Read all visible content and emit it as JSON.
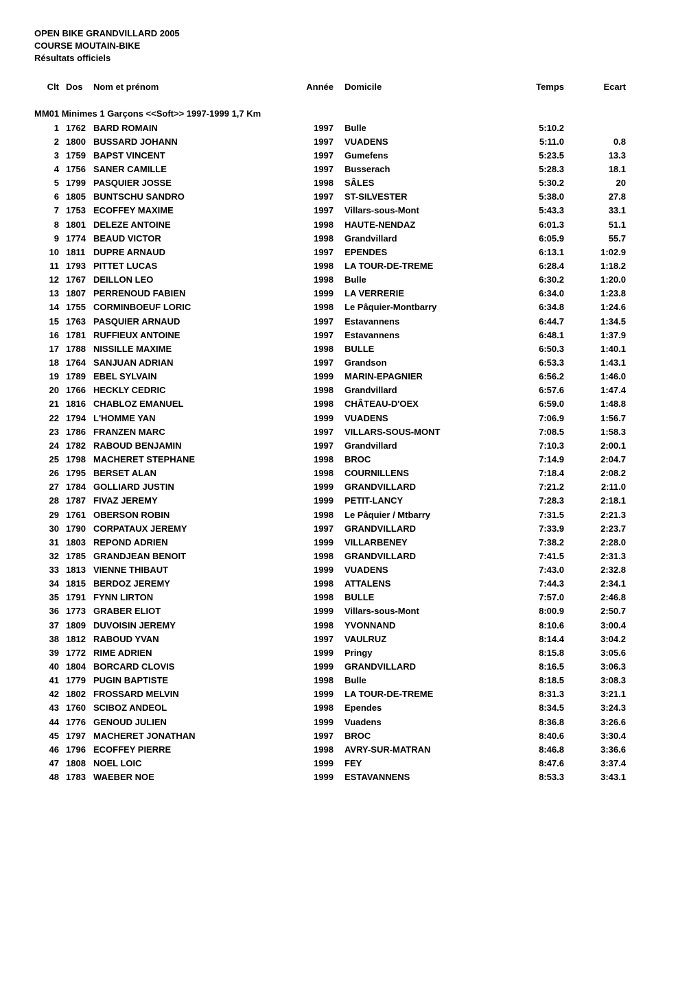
{
  "event": {
    "title": "OPEN BIKE GRANDVILLARD 2005",
    "subtitle1": "COURSE MOUTAIN-BIKE",
    "subtitle2": "Résultats officiels"
  },
  "columns": {
    "clt": "Clt",
    "dos": "Dos",
    "nom": "Nom et prénom",
    "annee": "Année",
    "domicile": "Domicile",
    "temps": "Temps",
    "ecart": "Ecart"
  },
  "category": {
    "label": "MM01 Minimes 1 Garçons <<Soft>> 1997-1999 1,7 Km"
  },
  "rows": [
    {
      "clt": "1",
      "dos": "1762",
      "nom": "BARD ROMAIN",
      "annee": "1997",
      "dom": "Bulle",
      "temps": "5:10.2",
      "ecart": ""
    },
    {
      "clt": "2",
      "dos": "1800",
      "nom": "BUSSARD JOHANN",
      "annee": "1997",
      "dom": "VUADENS",
      "temps": "5:11.0",
      "ecart": "0.8"
    },
    {
      "clt": "3",
      "dos": "1759",
      "nom": "BAPST VINCENT",
      "annee": "1997",
      "dom": "Gumefens",
      "temps": "5:23.5",
      "ecart": "13.3"
    },
    {
      "clt": "4",
      "dos": "1756",
      "nom": "SANER CAMILLE",
      "annee": "1997",
      "dom": "Busserach",
      "temps": "5:28.3",
      "ecart": "18.1"
    },
    {
      "clt": "5",
      "dos": "1799",
      "nom": "PASQUIER JOSSE",
      "annee": "1998",
      "dom": "SÂLES",
      "temps": "5:30.2",
      "ecart": "20"
    },
    {
      "clt": "6",
      "dos": "1805",
      "nom": "BUNTSCHU SANDRO",
      "annee": "1997",
      "dom": "ST-SILVESTER",
      "temps": "5:38.0",
      "ecart": "27.8"
    },
    {
      "clt": "7",
      "dos": "1753",
      "nom": "ECOFFEY MAXIME",
      "annee": "1997",
      "dom": "Villars-sous-Mont",
      "temps": "5:43.3",
      "ecart": "33.1"
    },
    {
      "clt": "8",
      "dos": "1801",
      "nom": "DELEZE ANTOINE",
      "annee": "1998",
      "dom": "HAUTE-NENDAZ",
      "temps": "6:01.3",
      "ecart": "51.1"
    },
    {
      "clt": "9",
      "dos": "1774",
      "nom": "BEAUD VICTOR",
      "annee": "1998",
      "dom": "Grandvillard",
      "temps": "6:05.9",
      "ecart": "55.7"
    },
    {
      "clt": "10",
      "dos": "1811",
      "nom": "DUPRE ARNAUD",
      "annee": "1997",
      "dom": "EPENDES",
      "temps": "6:13.1",
      "ecart": "1:02.9"
    },
    {
      "clt": "11",
      "dos": "1793",
      "nom": "PITTET LUCAS",
      "annee": "1998",
      "dom": "LA TOUR-DE-TREME",
      "temps": "6:28.4",
      "ecart": "1:18.2"
    },
    {
      "clt": "12",
      "dos": "1767",
      "nom": "DEILLON LEO",
      "annee": "1998",
      "dom": "Bulle",
      "temps": "6:30.2",
      "ecart": "1:20.0"
    },
    {
      "clt": "13",
      "dos": "1807",
      "nom": "PERRENOUD FABIEN",
      "annee": "1999",
      "dom": "LA VERRERIE",
      "temps": "6:34.0",
      "ecart": "1:23.8"
    },
    {
      "clt": "14",
      "dos": "1755",
      "nom": "CORMINBOEUF LORIC",
      "annee": "1998",
      "dom": "Le Pâquier-Montbarry",
      "temps": "6:34.8",
      "ecart": "1:24.6"
    },
    {
      "clt": "15",
      "dos": "1763",
      "nom": "PASQUIER ARNAUD",
      "annee": "1997",
      "dom": "Estavannens",
      "temps": "6:44.7",
      "ecart": "1:34.5"
    },
    {
      "clt": "16",
      "dos": "1781",
      "nom": "RUFFIEUX ANTOINE",
      "annee": "1997",
      "dom": "Estavannens",
      "temps": "6:48.1",
      "ecart": "1:37.9"
    },
    {
      "clt": "17",
      "dos": "1788",
      "nom": "NISSILLE MAXIME",
      "annee": "1998",
      "dom": "BULLE",
      "temps": "6:50.3",
      "ecart": "1:40.1"
    },
    {
      "clt": "18",
      "dos": "1764",
      "nom": "SANJUAN ADRIAN",
      "annee": "1997",
      "dom": "Grandson",
      "temps": "6:53.3",
      "ecart": "1:43.1"
    },
    {
      "clt": "19",
      "dos": "1789",
      "nom": "EBEL SYLVAIN",
      "annee": "1999",
      "dom": "MARIN-EPAGNIER",
      "temps": "6:56.2",
      "ecart": "1:46.0"
    },
    {
      "clt": "20",
      "dos": "1766",
      "nom": "HECKLY CEDRIC",
      "annee": "1998",
      "dom": "Grandvillard",
      "temps": "6:57.6",
      "ecart": "1:47.4"
    },
    {
      "clt": "21",
      "dos": "1816",
      "nom": "CHABLOZ EMANUEL",
      "annee": "1998",
      "dom": "CHÂTEAU-D'OEX",
      "temps": "6:59.0",
      "ecart": "1:48.8"
    },
    {
      "clt": "22",
      "dos": "1794",
      "nom": "L'HOMME YAN",
      "annee": "1999",
      "dom": "VUADENS",
      "temps": "7:06.9",
      "ecart": "1:56.7"
    },
    {
      "clt": "23",
      "dos": "1786",
      "nom": "FRANZEN MARC",
      "annee": "1997",
      "dom": "VILLARS-SOUS-MONT",
      "temps": "7:08.5",
      "ecart": "1:58.3"
    },
    {
      "clt": "24",
      "dos": "1782",
      "nom": "RABOUD BENJAMIN",
      "annee": "1997",
      "dom": "Grandvillard",
      "temps": "7:10.3",
      "ecart": "2:00.1"
    },
    {
      "clt": "25",
      "dos": "1798",
      "nom": "MACHERET STEPHANE",
      "annee": "1998",
      "dom": "BROC",
      "temps": "7:14.9",
      "ecart": "2:04.7"
    },
    {
      "clt": "26",
      "dos": "1795",
      "nom": "BERSET ALAN",
      "annee": "1998",
      "dom": "COURNILLENS",
      "temps": "7:18.4",
      "ecart": "2:08.2"
    },
    {
      "clt": "27",
      "dos": "1784",
      "nom": "GOLLIARD JUSTIN",
      "annee": "1999",
      "dom": "GRANDVILLARD",
      "temps": "7:21.2",
      "ecart": "2:11.0"
    },
    {
      "clt": "28",
      "dos": "1787",
      "nom": "FIVAZ JEREMY",
      "annee": "1999",
      "dom": "PETIT-LANCY",
      "temps": "7:28.3",
      "ecart": "2:18.1"
    },
    {
      "clt": "29",
      "dos": "1761",
      "nom": "OBERSON ROBIN",
      "annee": "1998",
      "dom": "Le Pâquier / Mtbarry",
      "temps": "7:31.5",
      "ecart": "2:21.3"
    },
    {
      "clt": "30",
      "dos": "1790",
      "nom": "CORPATAUX JEREMY",
      "annee": "1997",
      "dom": "GRANDVILLARD",
      "temps": "7:33.9",
      "ecart": "2:23.7"
    },
    {
      "clt": "31",
      "dos": "1803",
      "nom": "REPOND ADRIEN",
      "annee": "1999",
      "dom": "VILLARBENEY",
      "temps": "7:38.2",
      "ecart": "2:28.0"
    },
    {
      "clt": "32",
      "dos": "1785",
      "nom": "GRANDJEAN BENOIT",
      "annee": "1998",
      "dom": "GRANDVILLARD",
      "temps": "7:41.5",
      "ecart": "2:31.3"
    },
    {
      "clt": "33",
      "dos": "1813",
      "nom": "VIENNE THIBAUT",
      "annee": "1999",
      "dom": "VUADENS",
      "temps": "7:43.0",
      "ecart": "2:32.8"
    },
    {
      "clt": "34",
      "dos": "1815",
      "nom": "BERDOZ JEREMY",
      "annee": "1998",
      "dom": "ATTALENS",
      "temps": "7:44.3",
      "ecart": "2:34.1"
    },
    {
      "clt": "35",
      "dos": "1791",
      "nom": "FYNN LIRTON",
      "annee": "1998",
      "dom": "BULLE",
      "temps": "7:57.0",
      "ecart": "2:46.8"
    },
    {
      "clt": "36",
      "dos": "1773",
      "nom": "GRABER ELIOT",
      "annee": "1999",
      "dom": "Villars-sous-Mont",
      "temps": "8:00.9",
      "ecart": "2:50.7"
    },
    {
      "clt": "37",
      "dos": "1809",
      "nom": "DUVOISIN JEREMY",
      "annee": "1998",
      "dom": "YVONNAND",
      "temps": "8:10.6",
      "ecart": "3:00.4"
    },
    {
      "clt": "38",
      "dos": "1812",
      "nom": "RABOUD YVAN",
      "annee": "1997",
      "dom": "VAULRUZ",
      "temps": "8:14.4",
      "ecart": "3:04.2"
    },
    {
      "clt": "39",
      "dos": "1772",
      "nom": "RIME ADRIEN",
      "annee": "1999",
      "dom": "Pringy",
      "temps": "8:15.8",
      "ecart": "3:05.6"
    },
    {
      "clt": "40",
      "dos": "1804",
      "nom": "BORCARD CLOVIS",
      "annee": "1999",
      "dom": "GRANDVILLARD",
      "temps": "8:16.5",
      "ecart": "3:06.3"
    },
    {
      "clt": "41",
      "dos": "1779",
      "nom": "PUGIN BAPTISTE",
      "annee": "1998",
      "dom": "Bulle",
      "temps": "8:18.5",
      "ecart": "3:08.3"
    },
    {
      "clt": "42",
      "dos": "1802",
      "nom": "FROSSARD MELVIN",
      "annee": "1999",
      "dom": "LA TOUR-DE-TREME",
      "temps": "8:31.3",
      "ecart": "3:21.1"
    },
    {
      "clt": "43",
      "dos": "1760",
      "nom": "SCIBOZ ANDEOL",
      "annee": "1998",
      "dom": "Ependes",
      "temps": "8:34.5",
      "ecart": "3:24.3"
    },
    {
      "clt": "44",
      "dos": "1776",
      "nom": "GENOUD JULIEN",
      "annee": "1999",
      "dom": "Vuadens",
      "temps": "8:36.8",
      "ecart": "3:26.6"
    },
    {
      "clt": "45",
      "dos": "1797",
      "nom": "MACHERET JONATHAN",
      "annee": "1997",
      "dom": "BROC",
      "temps": "8:40.6",
      "ecart": "3:30.4"
    },
    {
      "clt": "46",
      "dos": "1796",
      "nom": "ECOFFEY PIERRE",
      "annee": "1998",
      "dom": "AVRY-SUR-MATRAN",
      "temps": "8:46.8",
      "ecart": "3:36.6"
    },
    {
      "clt": "47",
      "dos": "1808",
      "nom": "NOEL LOIC",
      "annee": "1999",
      "dom": "FEY",
      "temps": "8:47.6",
      "ecart": "3:37.4"
    },
    {
      "clt": "48",
      "dos": "1783",
      "nom": "WAEBER NOE",
      "annee": "1999",
      "dom": "ESTAVANNENS",
      "temps": "8:53.3",
      "ecart": "3:43.1"
    }
  ]
}
